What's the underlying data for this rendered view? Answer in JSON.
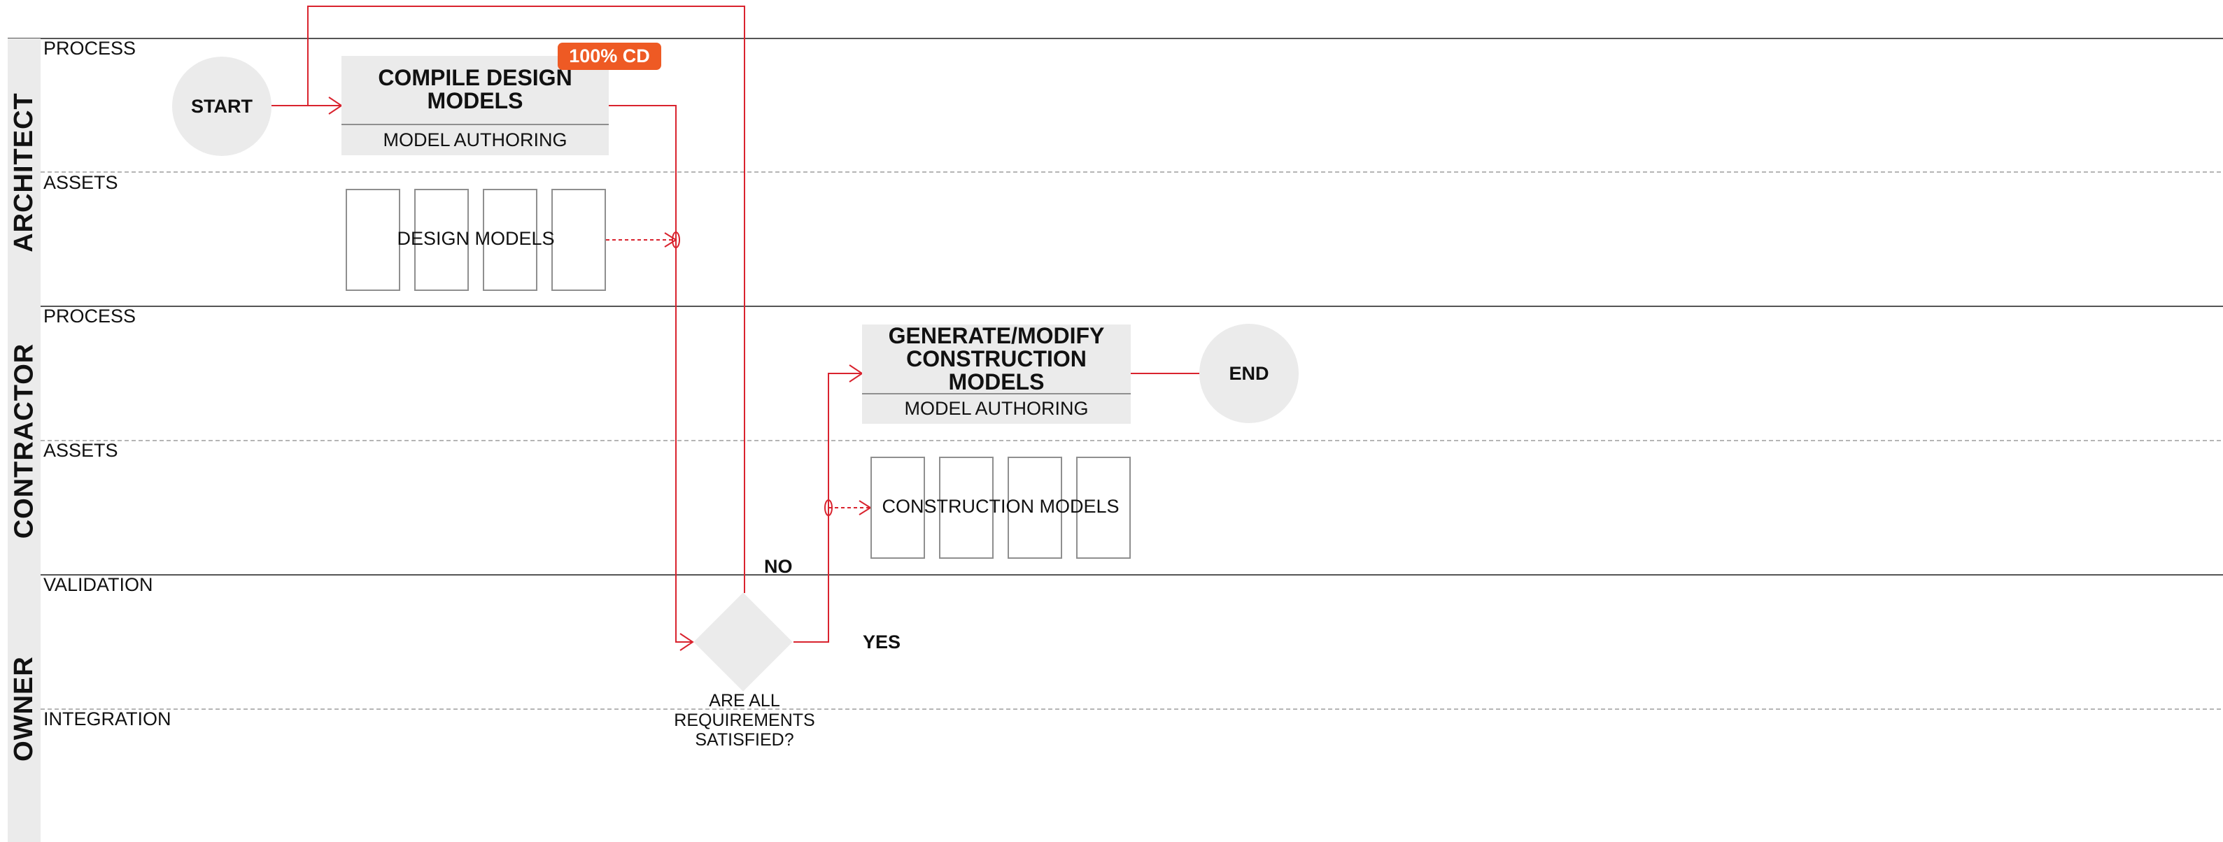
{
  "lanes": [
    {
      "label": "ARCHITECT",
      "sublanes": [
        "PROCESS",
        "ASSETS"
      ]
    },
    {
      "label": "CONTRACTOR",
      "sublanes": [
        "PROCESS",
        "ASSETS"
      ]
    },
    {
      "label": "OWNER",
      "sublanes": [
        "VALIDATION",
        "INTEGRATION"
      ]
    }
  ],
  "nodes": {
    "start": "START",
    "end": "END",
    "compile_task": {
      "title": "COMPILE DESIGN MODELS",
      "subtitle": "MODEL AUTHORING",
      "badge": "100% CD"
    },
    "generate_task": {
      "title": "GENERATE/MODIFY CONSTRUCTION MODELS",
      "subtitle": "MODEL AUTHORING"
    },
    "design_assets": "DESIGN MODELS",
    "construction_assets": "CONSTRUCTION MODELS",
    "decision": "ARE ALL REQUIREMENTS SATISFIED?"
  },
  "edge_labels": {
    "no": "NO",
    "yes": "YES"
  },
  "colors": {
    "flow": "#d9232e",
    "badge": "#ee5a24",
    "shape_fill": "#ebebeb",
    "lane_line": "#555555",
    "sublane_line": "#b5b5b5",
    "doc_border": "#8f8f8f"
  }
}
